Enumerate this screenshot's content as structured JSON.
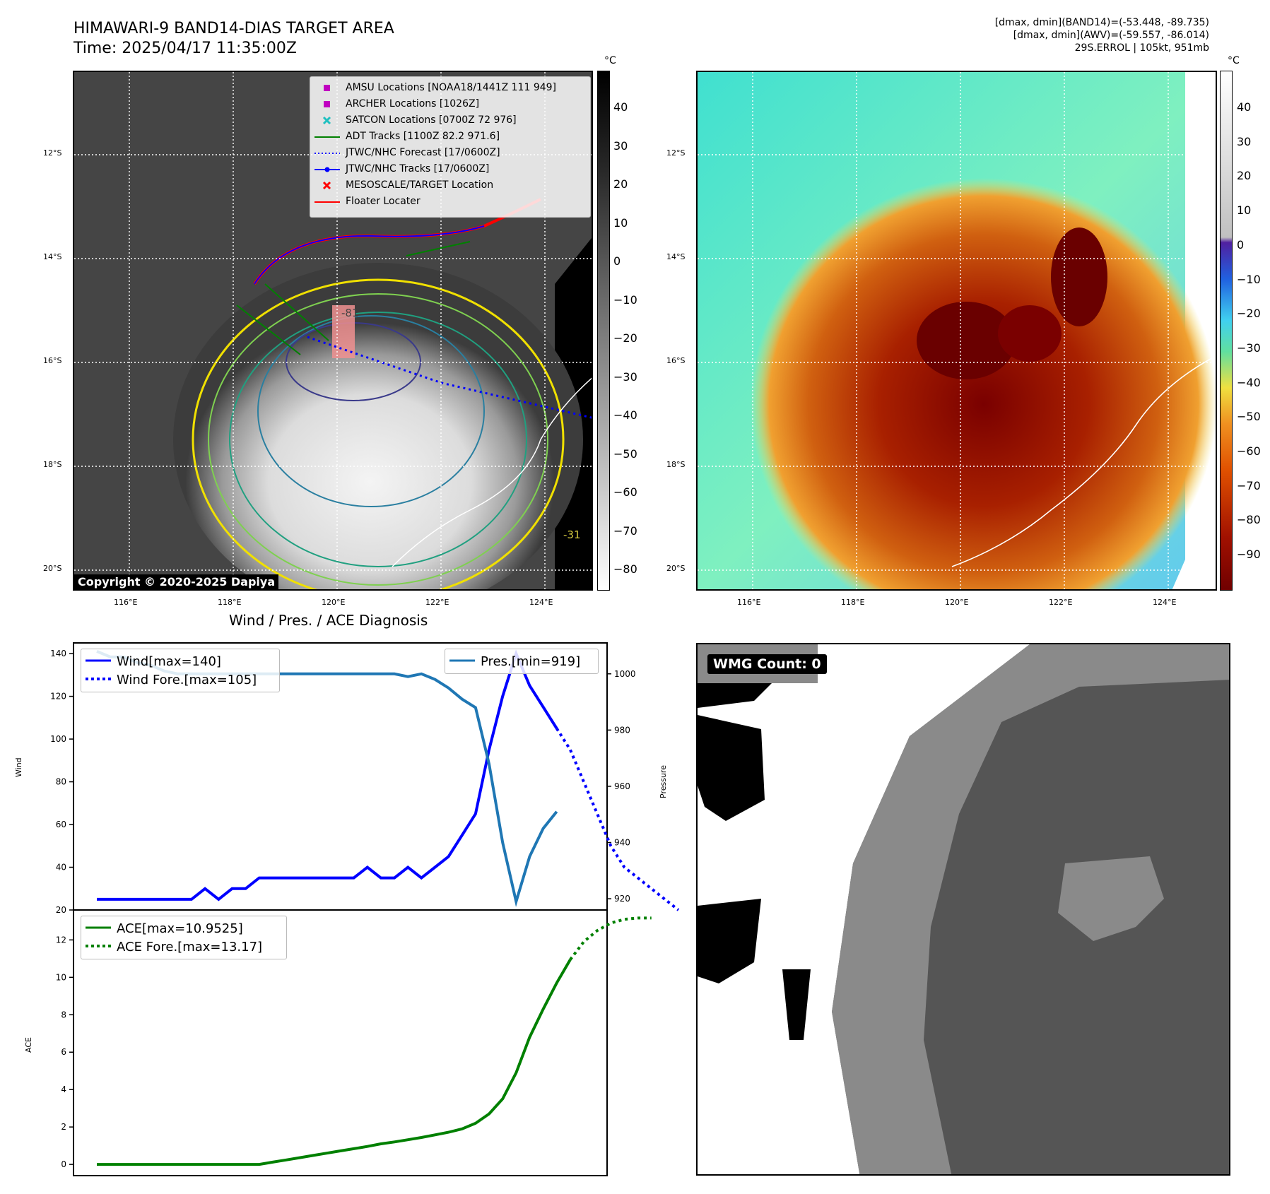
{
  "header": {
    "title_line1": "HIMAWARI-9 BAND14-DIAS TARGET AREA",
    "title_line2": "Time: 2025/04/17 11:35:00Z",
    "info_line1": "[dmax, dmin](BAND14)=(-53.448, -89.735)",
    "info_line2": "[dmax, dmin](AWV)=(-59.557, -86.014)",
    "info_line3": "29S.ERROL | 105kt, 951mb"
  },
  "map": {
    "lat_labels": [
      "12°S",
      "14°S",
      "16°S",
      "18°S",
      "20°S"
    ],
    "lon_labels": [
      "116°E",
      "118°E",
      "120°E",
      "122°E",
      "124°E"
    ],
    "copyright": "Copyright © 2020-2025 Dapiya",
    "contour_label": "-31",
    "contour_label_inner": "-81"
  },
  "colorbar_gray": {
    "unit": "°C",
    "ticks": [
      "40",
      "30",
      "20",
      "10",
      "0",
      "−10",
      "−20",
      "−30",
      "−40",
      "−50",
      "−60",
      "−70",
      "−80"
    ]
  },
  "colorbar_color": {
    "unit": "°C",
    "ticks": [
      "40",
      "30",
      "20",
      "10",
      "0",
      "−10",
      "−20",
      "−30",
      "−40",
      "−50",
      "−60",
      "−70",
      "−80",
      "−90"
    ]
  },
  "legend_map": {
    "items": [
      {
        "label": "AMSU Locations [NOAA18/1441Z 111 949]",
        "color": "#c000c0",
        "kind": "square"
      },
      {
        "label": "ARCHER Locations [1026Z]",
        "color": "#c000c0",
        "kind": "square"
      },
      {
        "label": "SATCON Locations [0700Z 72 976]",
        "color": "#20c0c0",
        "kind": "x"
      },
      {
        "label": "ADT Tracks [1100Z 82.2 971.6]",
        "color": "#008000",
        "kind": "line"
      },
      {
        "label": "JTWC/NHC Forecast [17/0600Z]",
        "color": "#0000ff",
        "kind": "dotted"
      },
      {
        "label": "JTWC/NHC Tracks [17/0600Z]",
        "color": "#0000ff",
        "kind": "line-dot"
      },
      {
        "label": "MESOSCALE/TARGET Location",
        "color": "#ff0000",
        "kind": "x"
      },
      {
        "label": "Floater Locater",
        "color": "#ff0000",
        "kind": "line"
      }
    ]
  },
  "diagnosis": {
    "title": "Wind / Pres. / ACE Diagnosis",
    "wind_ylabel": "Wind",
    "pres_ylabel": "Pressure",
    "ace_ylabel": "ACE",
    "legend_wind": "Wind[max=140]",
    "legend_wind_fore": "Wind Fore.[max=105]",
    "legend_pres": "Pres.[min=919]",
    "legend_ace": "ACE[max=10.9525]",
    "legend_ace_fore": "ACE Fore.[max=13.17]"
  },
  "wmg": {
    "label": "WMG Count: 0"
  },
  "chart_data": [
    {
      "type": "line",
      "title": "Wind / Pres. / ACE Diagnosis",
      "ylabel": "Wind",
      "ylim": [
        20,
        145
      ],
      "y_ticks": [
        20,
        40,
        60,
        80,
        100,
        120,
        140
      ],
      "series": [
        {
          "name": "Wind[max=140]",
          "color": "#0000ff",
          "style": "solid",
          "values": [
            25,
            25,
            25,
            25,
            25,
            25,
            25,
            25,
            30,
            25,
            30,
            30,
            35,
            35,
            35,
            35,
            35,
            35,
            35,
            35,
            40,
            35,
            35,
            40,
            35,
            40,
            45,
            55,
            65,
            95,
            120,
            140,
            125,
            115,
            105
          ]
        },
        {
          "name": "Wind Fore.[max=105]",
          "color": "#0000ff",
          "style": "dotted",
          "values": [
            105,
            95,
            80,
            65,
            50,
            40,
            35,
            30,
            25,
            20
          ]
        }
      ]
    },
    {
      "type": "line",
      "ylabel": "Pressure",
      "ylim": [
        916,
        1011
      ],
      "y_ticks": [
        920,
        940,
        960,
        980,
        1000
      ],
      "series": [
        {
          "name": "Pres.[min=919]",
          "color": "#1f77b4",
          "style": "solid",
          "values": [
            1008,
            1006,
            1006,
            1004,
            1003,
            1001,
            1000,
            1000,
            1000,
            1000,
            1000,
            1000,
            1000,
            1000,
            1000,
            1000,
            1000,
            1000,
            1000,
            1000,
            1000,
            1000,
            1000,
            999,
            1000,
            998,
            995,
            991,
            988,
            968,
            940,
            919,
            935,
            945,
            951
          ]
        }
      ]
    },
    {
      "type": "line",
      "ylabel": "ACE",
      "ylim": [
        -0.6,
        13.6
      ],
      "y_ticks": [
        0,
        2,
        4,
        6,
        8,
        10,
        12
      ],
      "series": [
        {
          "name": "ACE[max=10.9525]",
          "color": "#008000",
          "style": "solid",
          "values": [
            0,
            0,
            0,
            0,
            0,
            0,
            0,
            0,
            0,
            0,
            0,
            0,
            0,
            0.12,
            0.24,
            0.36,
            0.48,
            0.6,
            0.72,
            0.84,
            0.96,
            1.1,
            1.2,
            1.32,
            1.44,
            1.58,
            1.72,
            1.9,
            2.2,
            2.7,
            3.5,
            4.9,
            6.8,
            8.3,
            9.7,
            10.95
          ]
        },
        {
          "name": "ACE Fore.[max=13.17]",
          "color": "#008000",
          "style": "dotted",
          "values": [
            10.95,
            11.9,
            12.5,
            12.9,
            13.1,
            13.17,
            13.17
          ]
        }
      ]
    }
  ]
}
